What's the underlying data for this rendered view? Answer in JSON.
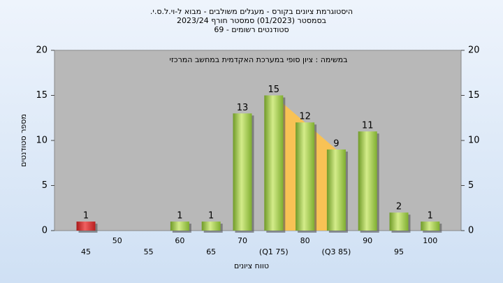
{
  "chart_data": {
    "type": "bar",
    "title": "היסטוגרמת ציונים בקורס - מעגלים משולבים - מבוא ל-וי.ל.ס.י.",
    "subtitle": "בסמסטר  (01/2023)  סמסטר חורף 2023/24",
    "subtitle2": "סטודנטים רשומים - 69",
    "annotation": "במשימה : ציון סופי במערכת האקדמית במחשב המרכזי",
    "x_label": "טווח ציונים",
    "y_label": "מספר סטודנטים",
    "categories": [
      "45",
      "50",
      "55",
      "60",
      "65",
      "70",
      "(Q1 75)",
      "80",
      "(Q3 85)",
      "90",
      "95",
      "100"
    ],
    "values": [
      1,
      0,
      0,
      1,
      1,
      13,
      15,
      12,
      9,
      11,
      2,
      1
    ],
    "colors": [
      "#d42a2a",
      "#8fbf3a",
      "#8fbf3a",
      "#8fbf3a",
      "#8fbf3a",
      "#8fbf3a",
      "#8fbf3a",
      "#8fbf3a",
      "#8fbf3a",
      "#8fbf3a",
      "#8fbf3a",
      "#8fbf3a"
    ],
    "ylim": [
      0,
      20
    ],
    "yticks": [
      0,
      5,
      10,
      15,
      20
    ],
    "grid": false
  }
}
